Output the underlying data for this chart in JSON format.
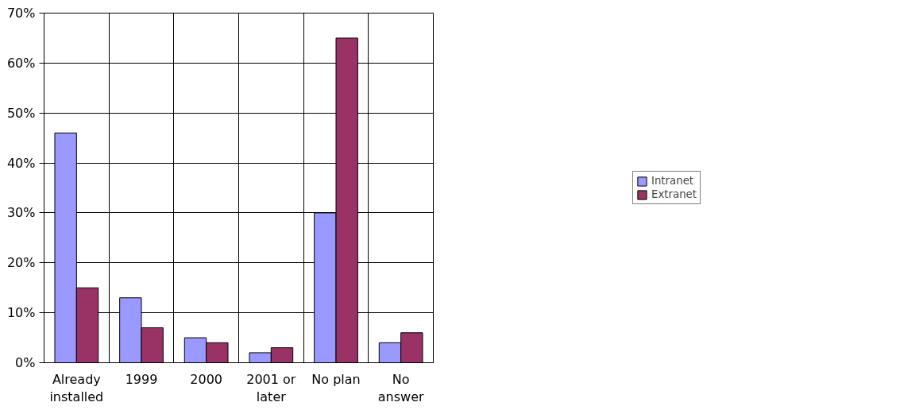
{
  "chart_data": {
    "type": "bar",
    "categories": [
      "Already installed",
      "1999",
      "2000",
      "2001 or later",
      "No plan",
      "No answer"
    ],
    "series": [
      {
        "name": "Intranet",
        "color": "#9999ff",
        "values": [
          46,
          13,
          5,
          2,
          30,
          4
        ]
      },
      {
        "name": "Extranet",
        "color": "#993366",
        "values": [
          15,
          7,
          4,
          3,
          65,
          6
        ]
      }
    ],
    "ylim": [
      0,
      70
    ],
    "yticks": [
      {
        "value": 0,
        "label": "0%"
      },
      {
        "value": 10,
        "label": "10%"
      },
      {
        "value": 20,
        "label": "20%"
      },
      {
        "value": 30,
        "label": "30%"
      },
      {
        "value": 40,
        "label": "40%"
      },
      {
        "value": 50,
        "label": "50%"
      },
      {
        "value": 60,
        "label": "60%"
      },
      {
        "value": 70,
        "label": "70%"
      }
    ],
    "grid": true,
    "legend": "right"
  }
}
